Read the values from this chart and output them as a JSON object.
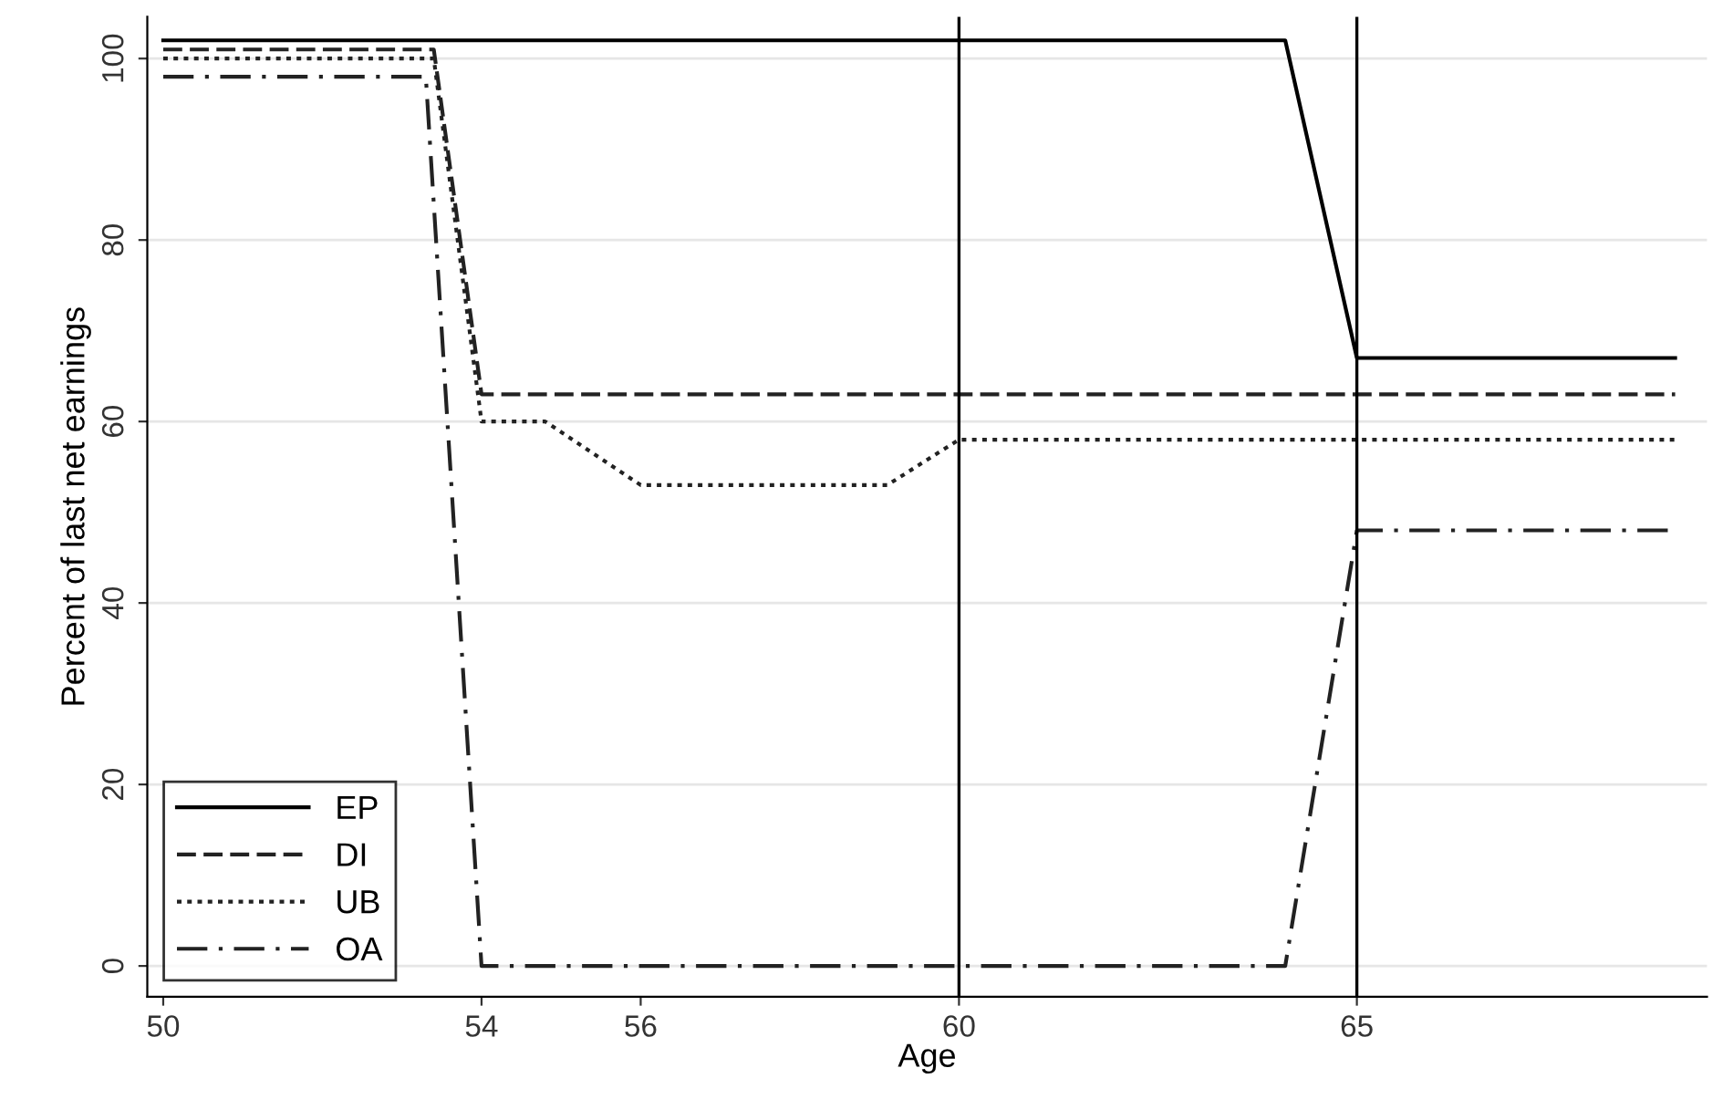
{
  "chart_data": {
    "type": "line",
    "xlabel": "Age",
    "ylabel": "Percent of last net earnings",
    "xlim": [
      49.8,
      69.4
    ],
    "ylim": [
      -3.4,
      104.6
    ],
    "xticks": [
      50,
      54,
      56,
      60,
      65
    ],
    "yticks": [
      0,
      20,
      40,
      60,
      80,
      100
    ],
    "grid": "y",
    "legend": "bottom left",
    "series": [
      {
        "name": "EP",
        "color": "#000000",
        "line_style": "solid",
        "x": [
          50,
          64.1,
          65,
          69
        ],
        "values": [
          102,
          102,
          67,
          67
        ]
      },
      {
        "name": "DI",
        "color": "#222222",
        "line_style": "dashed",
        "x": [
          50,
          53.4,
          54,
          69
        ],
        "values": [
          101,
          101,
          63,
          63
        ]
      },
      {
        "name": "UB",
        "color": "#222222",
        "line_style": "dotted",
        "x": [
          50,
          53.4,
          54,
          54.8,
          56,
          59.1,
          60,
          69
        ],
        "values": [
          100,
          100,
          60,
          60,
          53,
          53,
          58,
          58
        ]
      },
      {
        "name": "OA",
        "color": "#222222",
        "line_style": "dashdot",
        "x": [
          50,
          53.3,
          54,
          64.1,
          65,
          69
        ],
        "values": [
          98,
          98,
          0,
          0,
          48,
          48
        ]
      }
    ],
    "ref_lines": [
      {
        "axis": "x",
        "value": 60,
        "color": "#000000"
      },
      {
        "axis": "x",
        "value": 65,
        "color": "#000000"
      }
    ]
  }
}
